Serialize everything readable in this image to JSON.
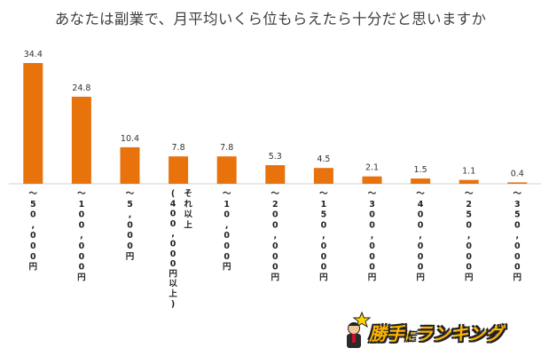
{
  "chart_data": {
    "type": "bar",
    "title": "あなたは副業で、月平均いくら位もらえたら十分だと思いますか",
    "categories": [
      "～50,000円",
      "～100,000円",
      "～5,000円",
      "(400,000円以上)",
      "～10,000円",
      "～200,000円",
      "～150,000円",
      "～300,000円",
      "～400,000円",
      "～250,000円",
      "～350,000円"
    ],
    "category_columns": [
      [
        "～50,000円"
      ],
      [
        "～100,000円"
      ],
      [
        "～5,000円"
      ],
      [
        "(400,000円以上)",
        "それ以上"
      ],
      [
        "～10,000円"
      ],
      [
        "～200,000円"
      ],
      [
        "～150,000円"
      ],
      [
        "～300,000円"
      ],
      [
        "～400,000円"
      ],
      [
        "～250,000円"
      ],
      [
        "～350,000円"
      ]
    ],
    "values": [
      34.4,
      24.8,
      10.4,
      7.8,
      7.8,
      5.3,
      4.5,
      2.1,
      1.5,
      1.1,
      0.4
    ],
    "data_labels": [
      "34.4",
      "24.8",
      "10.4",
      "7.8",
      "7.8",
      "5.3",
      "4.5",
      "2.1",
      "1.5",
      "1.1",
      "0.4"
    ],
    "ylim": [
      0,
      34.4
    ],
    "bar_color": "#e8720c",
    "grid": false
  },
  "logo": {
    "text_main": "勝手に",
    "text_small": "に",
    "text_end": "ランキング",
    "icon": "mascot-with-star-icon"
  }
}
